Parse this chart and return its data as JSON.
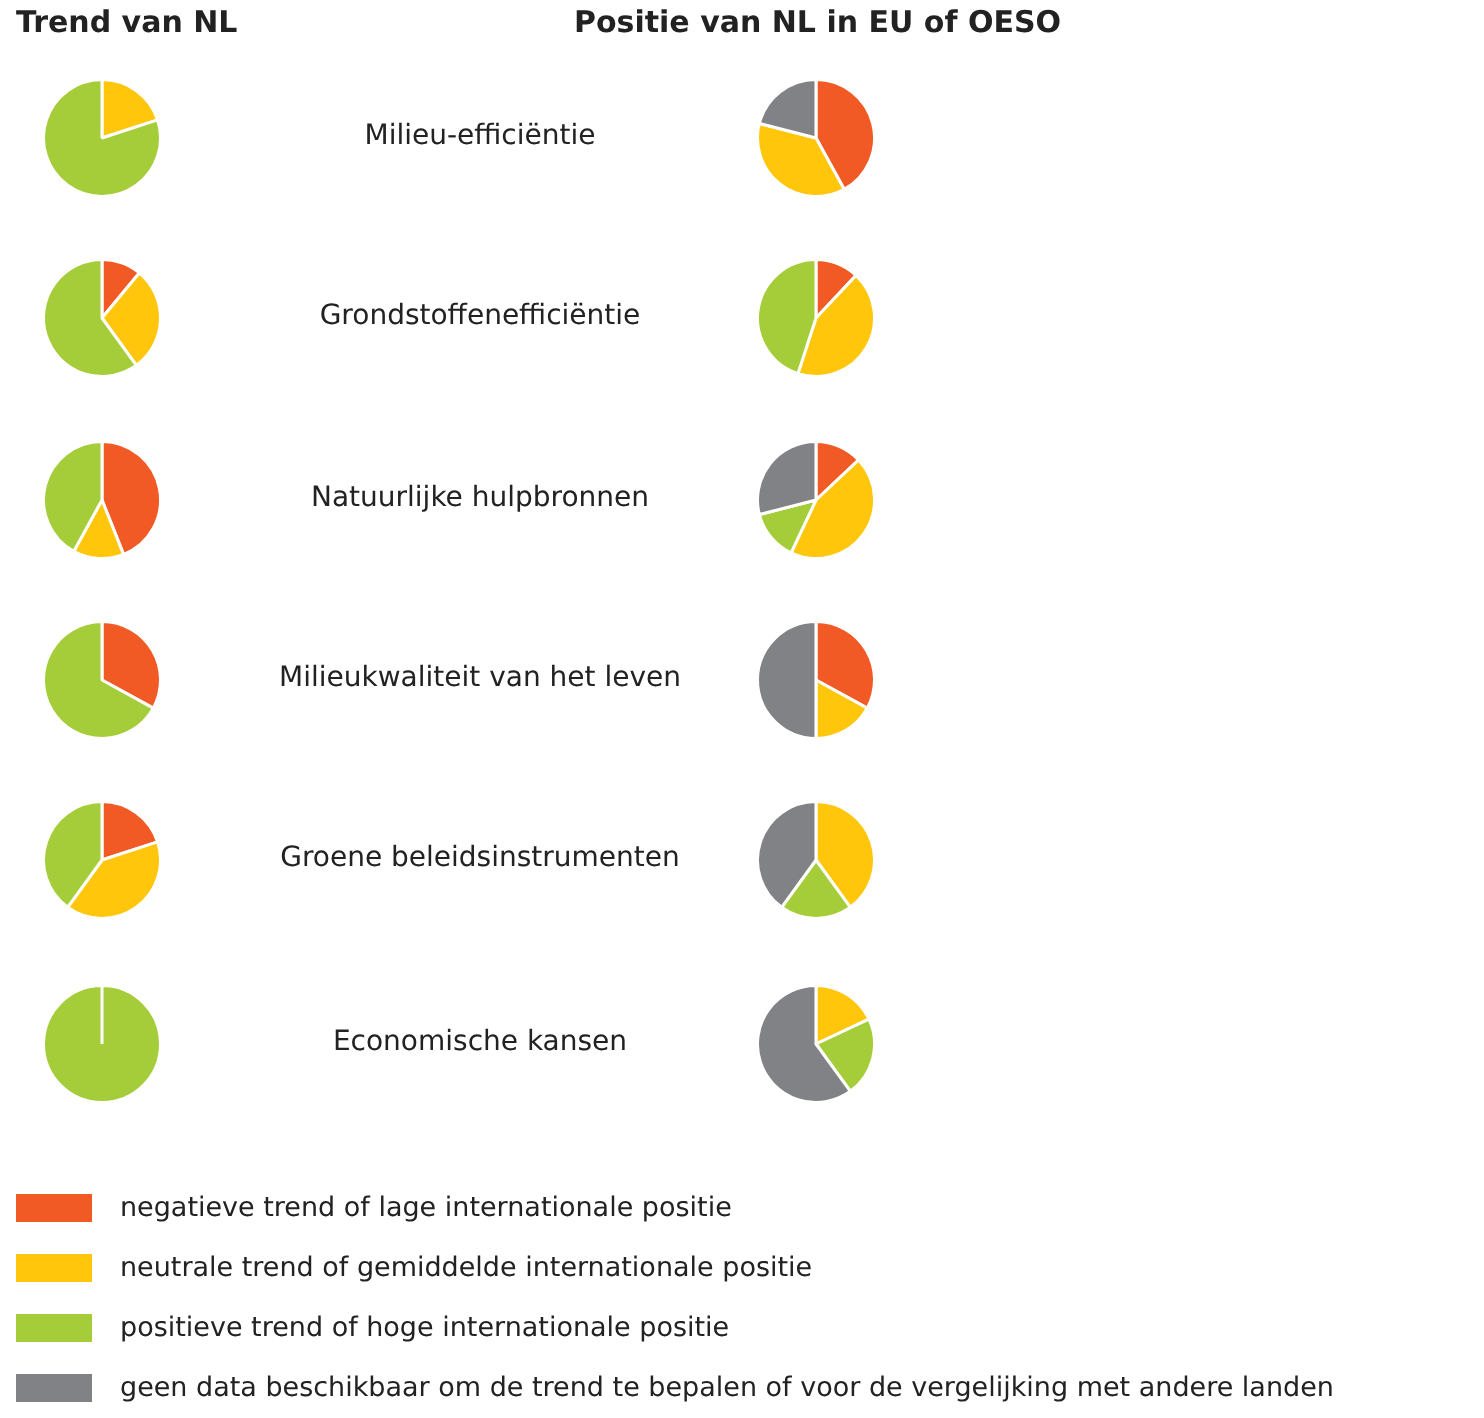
{
  "chart_data": [
    {
      "type": "pie",
      "title": "Milieu-efficiëntie",
      "annotations": [
        "Trend van NL"
      ],
      "legend": "bottom",
      "categories": [
        "negatieve trend of lage internationale positie",
        "neutrale trend of gemiddelde internationale positie",
        "positieve trend of hoge internationale positie",
        "geen data beschikbaar om de trend te bepalen of voor de vergelijking met andere landen"
      ],
      "values": [
        0,
        20,
        80,
        0
      ],
      "colors": [
        "#f15a24",
        "#ffc60b",
        "#a5cd39",
        "#808285"
      ]
    },
    {
      "type": "pie",
      "annotations": [
        "Positie van NL in EU of OESO"
      ],
      "categories": [
        null,
        null,
        null,
        null
      ],
      "values": [
        42,
        37,
        0,
        21
      ],
      "colors": [
        "#f15a24",
        "#ffc60b",
        "#a5cd39",
        "#808285"
      ]
    },
    {
      "type": "pie",
      "title": "Grondstoffenefficiëntie",
      "categories": [
        null,
        null,
        null,
        null
      ],
      "values": [
        11,
        29,
        60,
        0
      ],
      "colors": [
        "#f15a24",
        "#ffc60b",
        "#a5cd39",
        "#808285"
      ]
    },
    {
      "type": "pie",
      "categories": [
        null,
        null,
        null,
        null
      ],
      "values": [
        12,
        43,
        45,
        0
      ],
      "colors": [
        "#f15a24",
        "#ffc60b",
        "#a5cd39",
        "#808285"
      ]
    },
    {
      "type": "pie",
      "title": "Natuurlijke hulpbronnen",
      "categories": [
        null,
        null,
        null,
        null
      ],
      "values": [
        44,
        14,
        42,
        0
      ],
      "colors": [
        "#f15a24",
        "#ffc60b",
        "#a5cd39",
        "#808285"
      ]
    },
    {
      "type": "pie",
      "categories": [
        null,
        null,
        null,
        null
      ],
      "values": [
        13,
        44,
        14,
        29
      ],
      "colors": [
        "#f15a24",
        "#ffc60b",
        "#a5cd39",
        "#808285"
      ]
    },
    {
      "type": "pie",
      "title": "Milieukwaliteit van het leven",
      "categories": [
        null,
        null,
        null,
        null
      ],
      "values": [
        33,
        0,
        67,
        0
      ],
      "colors": [
        "#f15a24",
        "#ffc60b",
        "#a5cd39",
        "#808285"
      ]
    },
    {
      "type": "pie",
      "categories": [
        null,
        null,
        null,
        null
      ],
      "values": [
        33,
        17,
        0,
        50
      ],
      "colors": [
        "#f15a24",
        "#ffc60b",
        "#a5cd39",
        "#808285"
      ]
    },
    {
      "type": "pie",
      "title": "Groene beleidsinstrumenten",
      "categories": [
        null,
        null,
        null,
        null
      ],
      "values": [
        20,
        40,
        40,
        0
      ],
      "colors": [
        "#f15a24",
        "#ffc60b",
        "#a5cd39",
        "#808285"
      ]
    },
    {
      "type": "pie",
      "categories": [
        null,
        null,
        null,
        null
      ],
      "values": [
        0,
        40,
        20,
        40
      ],
      "colors": [
        "#f15a24",
        "#ffc60b",
        "#a5cd39",
        "#808285"
      ]
    },
    {
      "type": "pie",
      "title": "Economische kansen",
      "categories": [
        null,
        null,
        null,
        null
      ],
      "values": [
        0,
        0,
        100,
        0
      ],
      "colors": [
        "#f15a24",
        "#ffc60b",
        "#a5cd39",
        "#808285"
      ]
    },
    {
      "type": "pie",
      "categories": [
        null,
        null,
        null,
        null
      ],
      "values": [
        0,
        18,
        22,
        60
      ],
      "colors": [
        "#f15a24",
        "#ffc60b",
        "#a5cd39",
        "#808285"
      ]
    }
  ]
}
